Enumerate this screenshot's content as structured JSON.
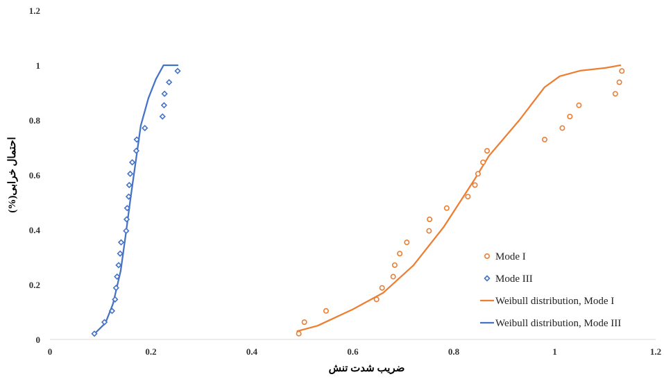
{
  "chart_data": {
    "type": "scatter",
    "xlabel": "ضریب شدت تنش",
    "ylabel": "احتمال خرابی(%)",
    "xlim": [
      0,
      1.2
    ],
    "ylim": [
      0,
      1.2
    ],
    "x_ticks": [
      "0",
      "0.2",
      "0.4",
      "0.6",
      "0.8",
      "1",
      "1.2"
    ],
    "y_ticks": [
      "0",
      "0.2",
      "0.4",
      "0.6",
      "0.8",
      "1",
      "1.2"
    ],
    "legend_position": "bottom-right",
    "grid": false,
    "series": [
      {
        "name": "Mode I",
        "kind": "scatter",
        "marker": "circle",
        "color": "#ED7D31",
        "x": [
          0.493,
          0.504,
          0.547,
          0.647,
          0.658,
          0.68,
          0.683,
          0.693,
          0.707,
          0.751,
          0.752,
          0.786,
          0.828,
          0.842,
          0.848,
          0.858,
          0.866,
          0.98,
          1.015,
          1.03,
          1.048,
          1.12,
          1.128,
          1.133
        ],
        "y": [
          0.021,
          0.063,
          0.104,
          0.146,
          0.188,
          0.229,
          0.271,
          0.313,
          0.354,
          0.396,
          0.438,
          0.479,
          0.521,
          0.563,
          0.604,
          0.646,
          0.688,
          0.729,
          0.771,
          0.813,
          0.854,
          0.896,
          0.938,
          0.979
        ]
      },
      {
        "name": "Mode III",
        "kind": "scatter",
        "marker": "diamond",
        "color": "#4472C4",
        "x": [
          0.088,
          0.108,
          0.123,
          0.129,
          0.131,
          0.133,
          0.136,
          0.139,
          0.141,
          0.151,
          0.152,
          0.153,
          0.156,
          0.157,
          0.159,
          0.163,
          0.171,
          0.172,
          0.188,
          0.223,
          0.226,
          0.227,
          0.236,
          0.253
        ],
        "y": [
          0.021,
          0.063,
          0.104,
          0.146,
          0.188,
          0.229,
          0.271,
          0.313,
          0.354,
          0.396,
          0.438,
          0.479,
          0.521,
          0.563,
          0.604,
          0.646,
          0.688,
          0.729,
          0.771,
          0.813,
          0.854,
          0.896,
          0.938,
          0.979
        ]
      },
      {
        "name": "Weibull distribution, Mode I",
        "kind": "line",
        "color": "#ED7D31",
        "x": [
          0.49,
          0.53,
          0.6,
          0.66,
          0.72,
          0.78,
          0.84,
          0.87,
          0.93,
          0.98,
          1.01,
          1.05,
          1.1,
          1.13
        ],
        "y": [
          0.03,
          0.05,
          0.11,
          0.17,
          0.27,
          0.41,
          0.58,
          0.67,
          0.8,
          0.92,
          0.96,
          0.98,
          0.99,
          1.0
        ]
      },
      {
        "name": "Weibull distribution, Mode III",
        "kind": "line",
        "color": "#4472C4",
        "x": [
          0.088,
          0.11,
          0.125,
          0.14,
          0.15,
          0.16,
          0.17,
          0.18,
          0.195,
          0.21,
          0.225,
          0.24,
          0.253
        ],
        "y": [
          0.02,
          0.06,
          0.13,
          0.25,
          0.38,
          0.52,
          0.65,
          0.78,
          0.88,
          0.95,
          1.0,
          1.0,
          1.0
        ]
      }
    ]
  }
}
